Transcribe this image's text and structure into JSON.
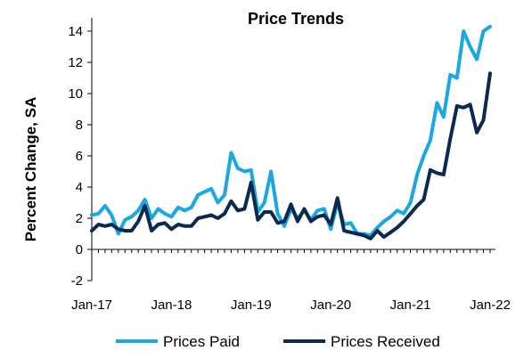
{
  "chart_data": {
    "type": "line",
    "title": "Price Trends",
    "xlabel": "",
    "ylabel": "Percent Change, SA",
    "ylim": [
      -2,
      15
    ],
    "yticks": [
      -2,
      0,
      2,
      4,
      6,
      8,
      10,
      12,
      14
    ],
    "xticks": [
      "Jan-17",
      "Jan-18",
      "Jan-19",
      "Jan-20",
      "Jan-21",
      "Jan-22"
    ],
    "xrange": [
      "2017-01",
      "2022-01"
    ],
    "grid": false,
    "legend": "bottom",
    "x": [
      "2017-01",
      "2017-02",
      "2017-03",
      "2017-04",
      "2017-05",
      "2017-06",
      "2017-07",
      "2017-08",
      "2017-09",
      "2017-10",
      "2017-11",
      "2017-12",
      "2018-01",
      "2018-02",
      "2018-03",
      "2018-04",
      "2018-05",
      "2018-06",
      "2018-07",
      "2018-08",
      "2018-09",
      "2018-10",
      "2018-11",
      "2018-12",
      "2019-01",
      "2019-02",
      "2019-03",
      "2019-04",
      "2019-05",
      "2019-06",
      "2019-07",
      "2019-08",
      "2019-09",
      "2019-10",
      "2019-11",
      "2019-12",
      "2020-01",
      "2020-02",
      "2020-03",
      "2020-04",
      "2020-05",
      "2020-06",
      "2020-07",
      "2020-08",
      "2020-09",
      "2020-10",
      "2020-11",
      "2020-12",
      "2021-01",
      "2021-02",
      "2021-03",
      "2021-04",
      "2021-05",
      "2021-06",
      "2021-07",
      "2021-08",
      "2021-09",
      "2021-10",
      "2021-11",
      "2021-12",
      "2022-01"
    ],
    "series": [
      {
        "name": "Prices Paid",
        "color": "#1ba7e1",
        "values": [
          2.2,
          2.3,
          2.8,
          2.2,
          1.0,
          1.9,
          2.1,
          2.5,
          3.2,
          2.0,
          2.6,
          2.3,
          2.1,
          2.7,
          2.5,
          2.7,
          3.5,
          3.7,
          3.9,
          3.0,
          3.5,
          6.2,
          5.2,
          5.0,
          5.1,
          2.4,
          3.0,
          5.0,
          2.3,
          1.5,
          2.6,
          2.0,
          2.5,
          1.9,
          2.5,
          2.6,
          1.3,
          3.0,
          1.6,
          1.7,
          1.0,
          1.0,
          0.9,
          1.4,
          1.8,
          2.1,
          2.5,
          2.3,
          3.0,
          4.8,
          6.0,
          7.0,
          9.4,
          8.5,
          11.2,
          11.0,
          14.0,
          13.0,
          12.2,
          14.0,
          14.3
        ]
      },
      {
        "name": "Prices Received",
        "color": "#0b2a4f",
        "values": [
          1.2,
          1.6,
          1.5,
          1.6,
          1.3,
          1.2,
          1.2,
          1.8,
          2.8,
          1.2,
          1.6,
          1.7,
          1.3,
          1.6,
          1.5,
          1.5,
          2.0,
          2.1,
          2.2,
          2.0,
          2.3,
          3.1,
          2.5,
          2.6,
          4.3,
          1.9,
          2.4,
          2.4,
          1.7,
          1.8,
          2.9,
          1.8,
          2.6,
          1.8,
          2.1,
          2.2,
          1.6,
          3.3,
          1.2,
          1.1,
          1.0,
          0.9,
          0.7,
          1.2,
          0.8,
          1.1,
          1.4,
          1.8,
          2.3,
          2.8,
          3.2,
          5.1,
          4.9,
          4.8,
          7.1,
          9.2,
          9.1,
          9.3,
          7.5,
          8.3,
          11.3
        ]
      }
    ]
  }
}
